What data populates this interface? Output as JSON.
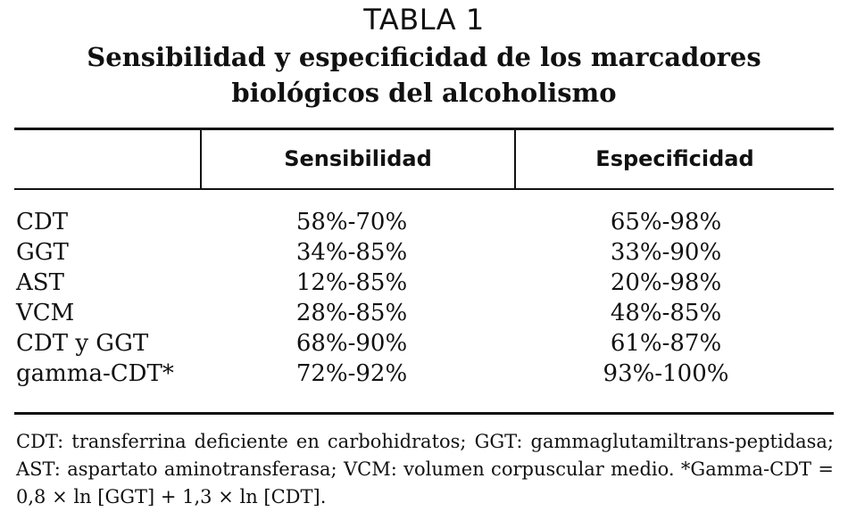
{
  "heading": {
    "label": "TABLA 1",
    "title_line1": "Sensibilidad y especificidad de los marcadores",
    "title_line2": "biológicos del alcoholismo"
  },
  "table": {
    "columns": [
      "",
      "Sensibilidad",
      "Especificidad"
    ],
    "rows": [
      {
        "name": "CDT",
        "sensibilidad": "58%-70%",
        "especificidad": "65%-98%"
      },
      {
        "name": "GGT",
        "sensibilidad": "34%-85%",
        "especificidad": "33%-90%"
      },
      {
        "name": "AST",
        "sensibilidad": "12%-85%",
        "especificidad": "20%-98%"
      },
      {
        "name": "VCM",
        "sensibilidad": "28%-85%",
        "especificidad": "48%-85%"
      },
      {
        "name": "CDT y GGT",
        "sensibilidad": "68%-90%",
        "especificidad": "61%-87%"
      },
      {
        "name": "gamma-CDT*",
        "sensibilidad": "72%-92%",
        "especificidad": "93%-100%"
      }
    ]
  },
  "footnote": {
    "text": "CDT: transferrina deficiente en carbohidratos; GGT: gammaglutamiltrans-peptidasa; AST: aspartato aminotransferasa; VCM: volumen corpuscular medio. *Gamma-CDT = 0,8 × ln [GGT] + 1,3 × ln [CDT]."
  }
}
